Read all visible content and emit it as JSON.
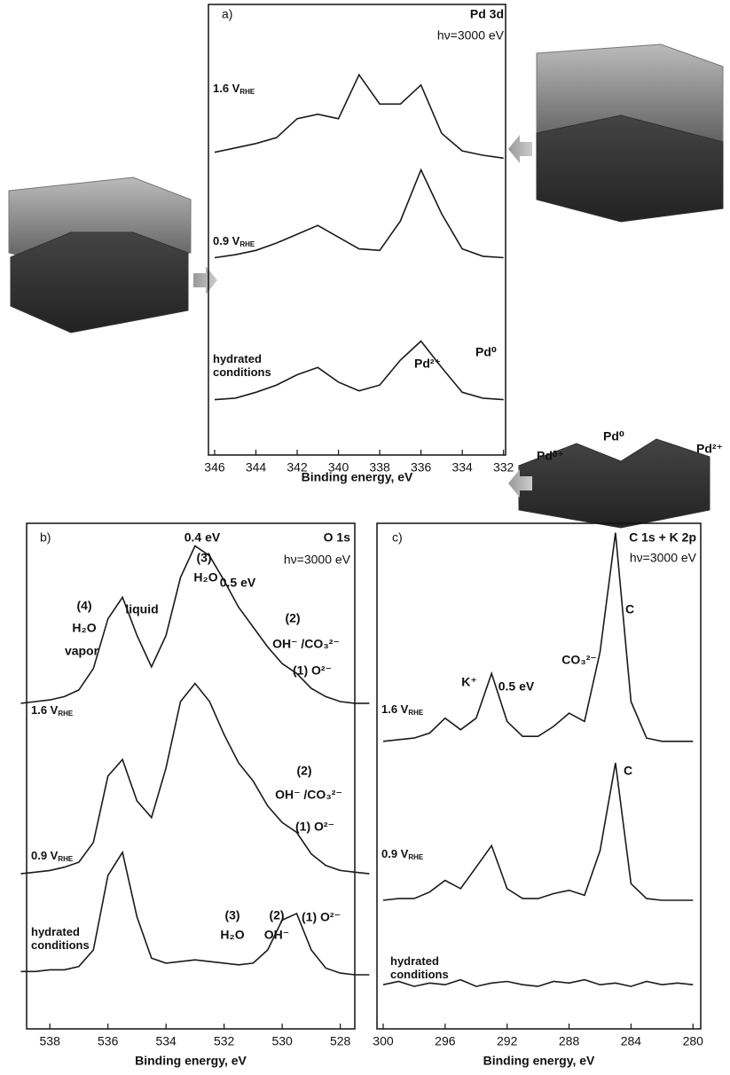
{
  "chart_data": [
    {
      "type": "line",
      "panel_label": "a)",
      "title": "Pd 3d",
      "subtitle": "hν=3000 eV",
      "x_label": "Binding energy, eV",
      "x": [
        346,
        345,
        344,
        343,
        342,
        341,
        340,
        339,
        338,
        337,
        336,
        335,
        334,
        333,
        332
      ],
      "xlim": [
        346.3,
        331.9
      ],
      "xticks": [
        346,
        344,
        342,
        340,
        338,
        336,
        334,
        332
      ],
      "ylim": [
        0,
        30
      ],
      "series": [
        {
          "name": "1.6 V",
          "name_subscript": "RHE",
          "color": "#1a1a1a",
          "values": [
            20.2,
            20.5,
            20.8,
            21.2,
            22.5,
            22.8,
            22.5,
            25.5,
            23.5,
            23.5,
            24.8,
            21.5,
            20.3,
            20,
            19.8
          ]
        },
        {
          "name": "0.9 V",
          "name_subscript": "RHE",
          "color": "#1a1a1a",
          "values": [
            13,
            13.2,
            13.5,
            14,
            14.6,
            15.2,
            14.4,
            13.6,
            13.5,
            15.5,
            19,
            16,
            13.6,
            13.1,
            13
          ]
        },
        {
          "name": "hydrated conditions",
          "color": "#1a1a1a",
          "values": [
            3.3,
            3.4,
            3.8,
            4.3,
            5,
            5.5,
            4.5,
            3.9,
            4.3,
            6,
            7.3,
            5.5,
            3.8,
            3.4,
            3.3
          ]
        }
      ],
      "annotations": [
        "Pd²⁺",
        "Pd⁰"
      ]
    },
    {
      "type": "line",
      "panel_label": "b)",
      "title": "O 1s",
      "subtitle": "hν=3000 eV",
      "x_label": "Binding energy, eV",
      "x": [
        539,
        538.5,
        538,
        537.5,
        537,
        536.5,
        536,
        535.5,
        535,
        534.5,
        534,
        533.5,
        533,
        532.5,
        532,
        531.5,
        531,
        530.5,
        530,
        529.5,
        529,
        528.5,
        528,
        527.5,
        527
      ],
      "xlim": [
        538.8,
        527.5
      ],
      "xticks": [
        538,
        536,
        534,
        532,
        530,
        528
      ],
      "ylim": [
        0,
        30
      ],
      "series": [
        {
          "name": "1.6 V",
          "name_subscript": "RHE",
          "color": "#1a1a1a",
          "values": [
            19.4,
            19.5,
            19.6,
            19.8,
            20.2,
            21.5,
            24.5,
            25.8,
            23.5,
            21.6,
            23.5,
            27,
            28.9,
            28.3,
            26.8,
            25.2,
            24,
            22.8,
            21.8,
            21.2,
            20.3,
            19.8,
            19.5,
            19.4,
            19.4
          ]
        },
        {
          "name": "0.9 V",
          "name_subscript": "RHE",
          "color": "#1a1a1a",
          "values": [
            9.1,
            9.2,
            9.3,
            9.5,
            9.8,
            11,
            15,
            16,
            13.5,
            12.5,
            15.5,
            19.5,
            20.6,
            19.5,
            17.5,
            15.8,
            14.7,
            13.2,
            12.2,
            11.6,
            10.3,
            9.6,
            9.3,
            9.2,
            9.1
          ]
        },
        {
          "name": "hydrated conditions",
          "color": "#1a1a1a",
          "values": [
            3.2,
            3.2,
            3.3,
            3.3,
            3.5,
            4.5,
            9,
            10.4,
            6.5,
            4,
            3.7,
            3.8,
            3.9,
            3.8,
            3.7,
            3.6,
            3.7,
            4.5,
            6.3,
            6.7,
            4.5,
            3.4,
            3.1,
            3,
            3
          ]
        }
      ],
      "annotations": [
        "(4)",
        "H₂O",
        "vapor",
        "0.4 eV",
        "(3)",
        "H₂O",
        "liquid",
        "0.5 eV",
        "(2)",
        "OH⁻ /CO₃²⁻",
        "(1) O²⁻",
        "(2)",
        "OH⁻ /CO₃²⁻",
        "(1) O²⁻",
        "(3)",
        "H₂O",
        "(2)",
        "OH⁻",
        "(1) O²⁻"
      ]
    },
    {
      "type": "line",
      "panel_label": "c)",
      "title": "C 1s + K 2p",
      "subtitle": "hν=3000 eV",
      "x_label": "Binding energy, eV",
      "x": [
        300,
        299,
        298,
        297,
        296,
        295,
        294,
        293,
        292,
        291,
        290,
        289,
        288,
        287,
        286,
        285,
        284,
        283,
        282,
        281,
        280
      ],
      "xlim": [
        300.4,
        279.5
      ],
      "xticks": [
        300,
        296,
        292,
        288,
        284,
        280
      ],
      "ylim": [
        0,
        30
      ],
      "series": [
        {
          "name": "1.6 V",
          "name_subscript": "RHE",
          "color": "#1a1a1a",
          "values": [
            17.1,
            17.2,
            17.3,
            17.6,
            18.5,
            17.8,
            18.5,
            21.2,
            18.3,
            17.4,
            17.4,
            18,
            18.8,
            18.3,
            22.5,
            29.7,
            19.5,
            17.3,
            17.1,
            17.1,
            17.1
          ]
        },
        {
          "name": "0.9 V",
          "name_subscript": "RHE",
          "color": "#1a1a1a",
          "values": [
            7.5,
            7.6,
            7.6,
            8,
            8.7,
            8.2,
            9.5,
            10.8,
            8.2,
            7.6,
            7.6,
            7.9,
            8.1,
            7.8,
            10.5,
            15.8,
            8.5,
            7.6,
            7.5,
            7.5,
            7.5
          ]
        },
        {
          "name": "hydrated conditions",
          "color": "#1a1a1a",
          "values": [
            2.4,
            2.6,
            2.3,
            2.5,
            2.4,
            2.7,
            2.3,
            2.5,
            2.6,
            2.4,
            2.3,
            2.6,
            2.5,
            2.7,
            2.4,
            2.5,
            2.3,
            2.6,
            2.4,
            2.5,
            2.4
          ]
        }
      ],
      "annotations": [
        "K⁺",
        "0.5 eV",
        "CO₃²⁻",
        "C",
        "C"
      ]
    }
  ],
  "illustration_labels": [
    "Pdᵟ⁺",
    "Pd⁰",
    "Pd²⁺"
  ]
}
